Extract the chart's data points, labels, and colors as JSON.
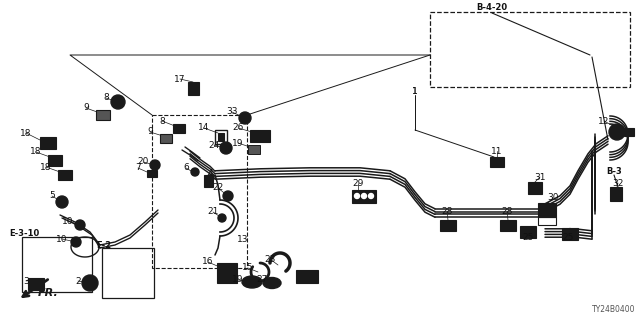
{
  "bg_color": "#ffffff",
  "fig_width": 6.4,
  "fig_height": 3.2,
  "dpi": 100,
  "diagram_code": "TY24B0400",
  "line_color": "#1a1a1a",
  "label_color": "#111111"
}
